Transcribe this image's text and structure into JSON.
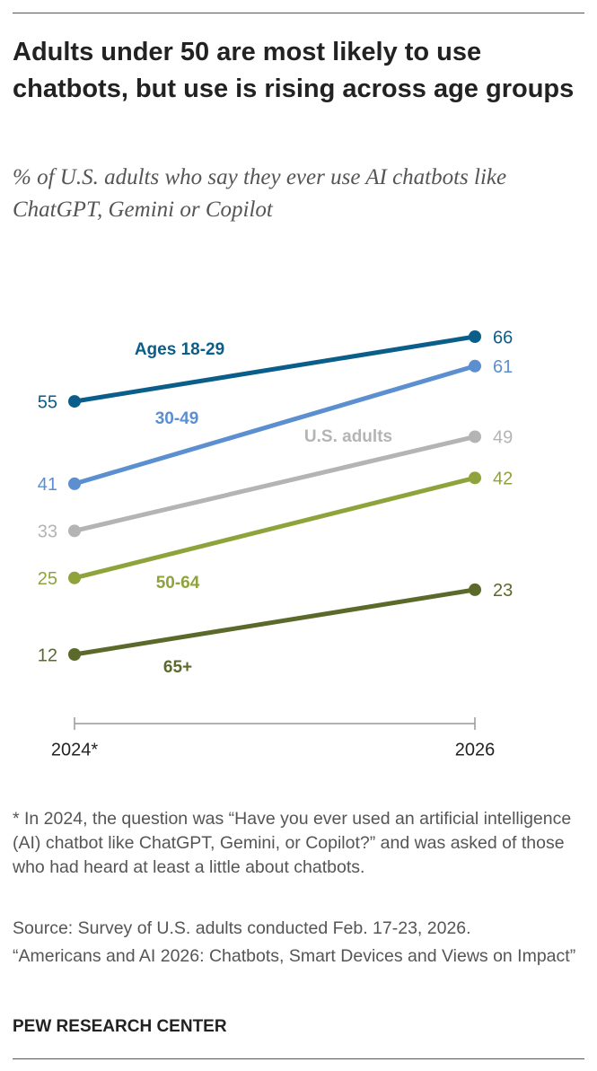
{
  "chart_data": {
    "type": "line",
    "title": "Adults under 50 are most likely to use chatbots, but use is rising across age groups",
    "subtitle": "% of U.S. adults who say they ever use AI chatbots like ChatGPT, Gemini or Copilot",
    "categories": [
      "2024*",
      "2026"
    ],
    "series": [
      {
        "name": "Ages 18-29",
        "color": "#0b5e8a",
        "values": [
          55,
          66
        ]
      },
      {
        "name": "30-49",
        "color": "#5b8fd0",
        "values": [
          41,
          61
        ]
      },
      {
        "name": "U.S. adults",
        "color": "#b4b4b4",
        "values": [
          33,
          49
        ]
      },
      {
        "name": "50-64",
        "color": "#8fa33c",
        "values": [
          25,
          42
        ]
      },
      {
        "name": "65+",
        "color": "#5b6a2a",
        "values": [
          12,
          23
        ]
      }
    ],
    "notes": [
      "* In 2024, the question was “Have you ever used an artificial intelligence (AI) chatbot like ChatGPT, Gemini, or Copilot?” and was asked of those who had heard at least a little about chatbots.",
      "Source: Survey of U.S. adults conducted Feb. 17-23, 2026.",
      "“Americans and AI 2026: Chatbots, Smart Devices and Views on Impact”"
    ],
    "brand": "PEW RESEARCH CENTER"
  }
}
